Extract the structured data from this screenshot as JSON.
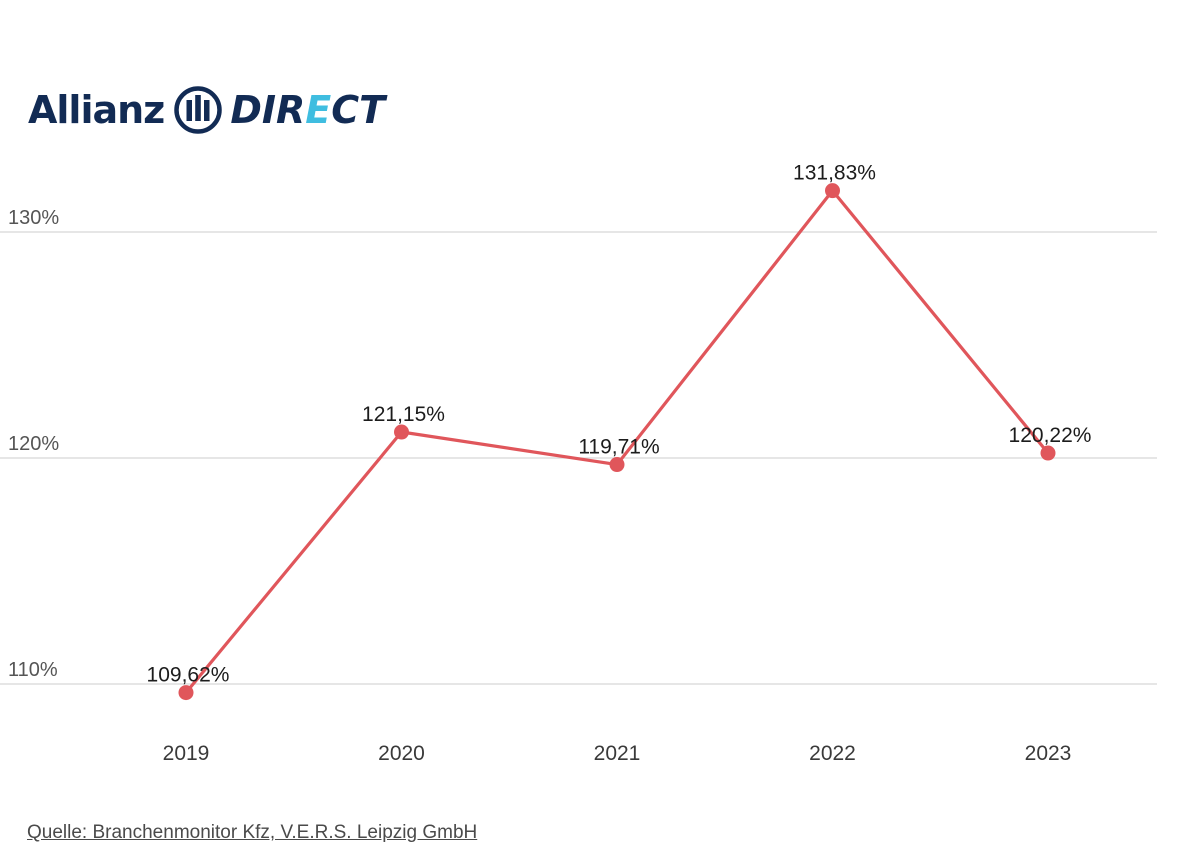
{
  "brand": {
    "word": "Allianz",
    "direct_pre": "DIR",
    "direct_accent": "E",
    "direct_post": "CT",
    "colors": {
      "navy": "#122b54",
      "accent": "#3fbde0"
    }
  },
  "source_text": "Quelle: Branchenmonitor Kfz, V.E.R.S. Leipzig GmbH",
  "chart_data": {
    "type": "line",
    "title": "",
    "xlabel": "",
    "ylabel": "",
    "categories": [
      "2019",
      "2020",
      "2021",
      "2022",
      "2023"
    ],
    "series": [
      {
        "values": [
          109.62,
          121.15,
          119.71,
          131.83,
          120.22
        ],
        "labels": [
          "109,62%",
          "121,15%",
          "119,71%",
          "131,83%",
          "120,22%"
        ],
        "color": "#e0565b"
      }
    ],
    "ylim": [
      110,
      130
    ],
    "yticks": [
      110,
      120,
      130
    ],
    "ytick_labels": [
      "110%",
      "120%",
      "130%"
    ],
    "grid": true,
    "legend": "none"
  }
}
